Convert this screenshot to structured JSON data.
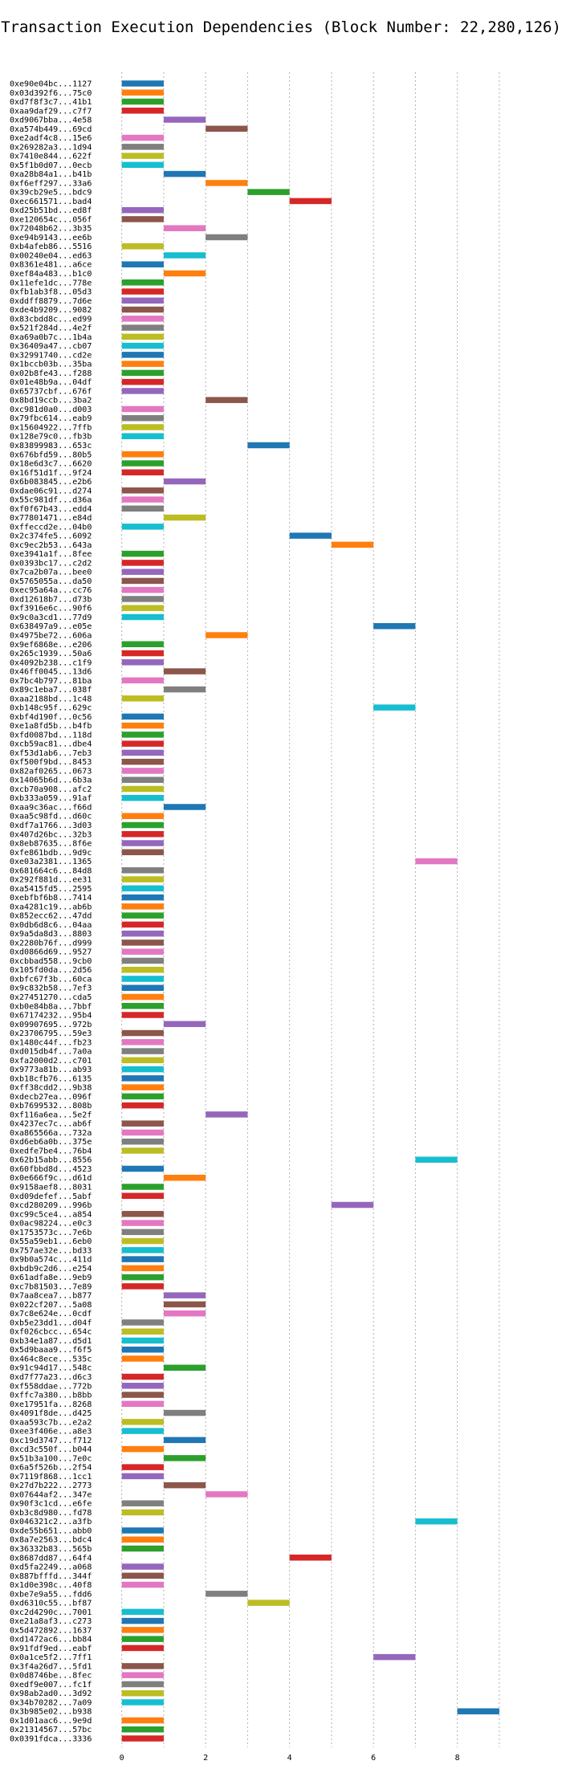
{
  "chart_data": {
    "type": "bar",
    "orientation": "horizontal",
    "title": "Transaction Execution Dependencies (Block Number: 22,280,126)",
    "xlabel": "",
    "ylabel": "",
    "xlim": [
      -0.3,
      9.5
    ],
    "xticks": [
      0,
      2,
      4,
      6,
      8
    ],
    "grid": "vertical dashed",
    "legend": "none",
    "palette": [
      "#1f77b4",
      "#ff7f0e",
      "#2ca02c",
      "#d62728",
      "#9467bd",
      "#8c564b",
      "#e377c2",
      "#7f7f7f",
      "#bcbd22",
      "#17becf"
    ],
    "rows": [
      {
        "label": "0xe90e04bc...1127",
        "start": 0
      },
      {
        "label": "0x03d392f6...75c0",
        "start": 0
      },
      {
        "label": "0xd7f8f3c7...41b1",
        "start": 0
      },
      {
        "label": "0xaa9daf29...c7f7",
        "start": 0
      },
      {
        "label": "0xd9067bba...4e58",
        "start": 1
      },
      {
        "label": "0xa574b449...69cd",
        "start": 2
      },
      {
        "label": "0xe2adf4c8...15e6",
        "start": 0
      },
      {
        "label": "0x269282a3...1d94",
        "start": 0
      },
      {
        "label": "0x7410e844...622f",
        "start": 0
      },
      {
        "label": "0x5f1b0d07...0ecb",
        "start": 0
      },
      {
        "label": "0xa28b84a1...b41b",
        "start": 1
      },
      {
        "label": "0xf6eff297...33a6",
        "start": 2
      },
      {
        "label": "0x39cb29e5...bdc9",
        "start": 3
      },
      {
        "label": "0xec661571...bad4",
        "start": 4
      },
      {
        "label": "0xd25b51bd...ed8f",
        "start": 0
      },
      {
        "label": "0xe120654c...056f",
        "start": 0
      },
      {
        "label": "0x72048b62...3b35",
        "start": 1
      },
      {
        "label": "0xe94b9143...ee6b",
        "start": 2
      },
      {
        "label": "0xb4afeb86...5516",
        "start": 0
      },
      {
        "label": "0x00240e04...ed63",
        "start": 1
      },
      {
        "label": "0x8361e481...a6ce",
        "start": 0
      },
      {
        "label": "0xef84a483...b1c0",
        "start": 1
      },
      {
        "label": "0x11efe1dc...778e",
        "start": 0
      },
      {
        "label": "0xfb1ab3f8...05d3",
        "start": 0
      },
      {
        "label": "0xddff8879...7d6e",
        "start": 0
      },
      {
        "label": "0xde4b9209...9082",
        "start": 0
      },
      {
        "label": "0x83cbdd8c...ed99",
        "start": 0
      },
      {
        "label": "0x521f284d...4e2f",
        "start": 0
      },
      {
        "label": "0xa69a0b7c...1b4a",
        "start": 0
      },
      {
        "label": "0x36409a47...cb07",
        "start": 0
      },
      {
        "label": "0x32991740...cd2e",
        "start": 0
      },
      {
        "label": "0x1bccb03b...35ba",
        "start": 0
      },
      {
        "label": "0x02b8fe43...f288",
        "start": 0
      },
      {
        "label": "0x01e48b9a...04df",
        "start": 0
      },
      {
        "label": "0x65737cbf...676f",
        "start": 0
      },
      {
        "label": "0x8bd19ccb...3ba2",
        "start": 2
      },
      {
        "label": "0xc981d0a0...d003",
        "start": 0
      },
      {
        "label": "0x79fbc614...eab9",
        "start": 0
      },
      {
        "label": "0x15604922...7ffb",
        "start": 0
      },
      {
        "label": "0x128e79c0...fb3b",
        "start": 0
      },
      {
        "label": "0x83899983...653c",
        "start": 3
      },
      {
        "label": "0x676bfd59...80b5",
        "start": 0
      },
      {
        "label": "0x18e6d3c7...6620",
        "start": 0
      },
      {
        "label": "0x16f51d1f...9f24",
        "start": 0
      },
      {
        "label": "0x6b083845...e2b6",
        "start": 1
      },
      {
        "label": "0xdae06c91...d274",
        "start": 0
      },
      {
        "label": "0x55c981df...d36a",
        "start": 0
      },
      {
        "label": "0xf0f67b43...edd4",
        "start": 0
      },
      {
        "label": "0x77801471...e84d",
        "start": 1
      },
      {
        "label": "0xffeccd2e...04b0",
        "start": 0
      },
      {
        "label": "0x2c374fe5...6092",
        "start": 4
      },
      {
        "label": "0xc9ec2b53...643a",
        "start": 5
      },
      {
        "label": "0xe3941a1f...8fee",
        "start": 0
      },
      {
        "label": "0x0393bc17...c2d2",
        "start": 0
      },
      {
        "label": "0x7ca2b07a...bee0",
        "start": 0
      },
      {
        "label": "0x5765055a...da50",
        "start": 0
      },
      {
        "label": "0xec95a64a...cc76",
        "start": 0
      },
      {
        "label": "0xd12618b7...d73b",
        "start": 0
      },
      {
        "label": "0xf3916e6c...90f6",
        "start": 0
      },
      {
        "label": "0x9c0a3cd1...77d9",
        "start": 0
      },
      {
        "label": "0x638497a9...e05e",
        "start": 6
      },
      {
        "label": "0x4975be72...606a",
        "start": 2
      },
      {
        "label": "0x9ef6868e...e206",
        "start": 0
      },
      {
        "label": "0x265c1939...50a6",
        "start": 0
      },
      {
        "label": "0x4092b238...c1f9",
        "start": 0
      },
      {
        "label": "0x46ff0045...13d6",
        "start": 1
      },
      {
        "label": "0x7bc4b797...81ba",
        "start": 0
      },
      {
        "label": "0x89c1eba7...038f",
        "start": 1
      },
      {
        "label": "0xaa2188bd...1c48",
        "start": 0
      },
      {
        "label": "0xb148c95f...629c",
        "start": 6
      },
      {
        "label": "0xbf4d190f...0c56",
        "start": 0
      },
      {
        "label": "0xe1a8fd5b...b4fb",
        "start": 0
      },
      {
        "label": "0xfd0087bd...118d",
        "start": 0
      },
      {
        "label": "0xcb59ac81...dbe4",
        "start": 0
      },
      {
        "label": "0xf53d1ab6...7eb3",
        "start": 0
      },
      {
        "label": "0xf500f9bd...8453",
        "start": 0
      },
      {
        "label": "0x82af0265...0673",
        "start": 0
      },
      {
        "label": "0x14065b6d...6b3a",
        "start": 0
      },
      {
        "label": "0xcb70a908...afc2",
        "start": 0
      },
      {
        "label": "0xb333a059...91af",
        "start": 0
      },
      {
        "label": "0xaa9c36ac...f66d",
        "start": 1
      },
      {
        "label": "0xaa5c98fd...d60c",
        "start": 0
      },
      {
        "label": "0xdf7a1766...3d03",
        "start": 0
      },
      {
        "label": "0x407d26bc...32b3",
        "start": 0
      },
      {
        "label": "0x8eb87635...8f6e",
        "start": 0
      },
      {
        "label": "0xfe861bdb...9d9c",
        "start": 0
      },
      {
        "label": "0xe03a2381...1365",
        "start": 7
      },
      {
        "label": "0x681664c6...84d8",
        "start": 0
      },
      {
        "label": "0x292f881d...ee31",
        "start": 0
      },
      {
        "label": "0xa5415fd5...2595",
        "start": 0
      },
      {
        "label": "0xebfbf6b8...7414",
        "start": 0
      },
      {
        "label": "0xa4281c19...ab6b",
        "start": 0
      },
      {
        "label": "0x852ecc62...47dd",
        "start": 0
      },
      {
        "label": "0x0db6d8c6...04aa",
        "start": 0
      },
      {
        "label": "0x9a5da8d3...8803",
        "start": 0
      },
      {
        "label": "0x2280b76f...d999",
        "start": 0
      },
      {
        "label": "0xd0866d69...9527",
        "start": 0
      },
      {
        "label": "0xcbbad558...9cb0",
        "start": 0
      },
      {
        "label": "0x105fd0da...2d56",
        "start": 0
      },
      {
        "label": "0xbfc67f3b...60ca",
        "start": 0
      },
      {
        "label": "0x9c832b58...7ef3",
        "start": 0
      },
      {
        "label": "0x27451270...cda5",
        "start": 0
      },
      {
        "label": "0xb0e84b8a...7bbf",
        "start": 0
      },
      {
        "label": "0x67174232...95b4",
        "start": 0
      },
      {
        "label": "0x09907695...972b",
        "start": 1
      },
      {
        "label": "0x23706795...59e3",
        "start": 0
      },
      {
        "label": "0x1480c44f...fb23",
        "start": 0
      },
      {
        "label": "0xd015db4f...7a0a",
        "start": 0
      },
      {
        "label": "0xfa2000d2...c701",
        "start": 0
      },
      {
        "label": "0x9773a81b...ab93",
        "start": 0
      },
      {
        "label": "0xb18cfb76...6135",
        "start": 0
      },
      {
        "label": "0xff38cdd2...9b38",
        "start": 0
      },
      {
        "label": "0xdecb27ea...096f",
        "start": 0
      },
      {
        "label": "0xb7699532...808b",
        "start": 0
      },
      {
        "label": "0xf116a6ea...5e2f",
        "start": 2
      },
      {
        "label": "0x4237ec7c...ab6f",
        "start": 0
      },
      {
        "label": "0xa865566a...732a",
        "start": 0
      },
      {
        "label": "0xd6eb6a0b...375e",
        "start": 0
      },
      {
        "label": "0xedfe7be4...76b4",
        "start": 0
      },
      {
        "label": "0x62b15abb...8556",
        "start": 7
      },
      {
        "label": "0x60fbbd8d...4523",
        "start": 0
      },
      {
        "label": "0x0e666f9c...d61d",
        "start": 1
      },
      {
        "label": "0x9158aef8...8031",
        "start": 0
      },
      {
        "label": "0xd09defef...5abf",
        "start": 0
      },
      {
        "label": "0xcd280209...996b",
        "start": 5
      },
      {
        "label": "0xc99c5ce4...a854",
        "start": 0
      },
      {
        "label": "0x0ac98224...e0c3",
        "start": 0
      },
      {
        "label": "0x1753573c...7e6b",
        "start": 0
      },
      {
        "label": "0x55a59eb1...6eb0",
        "start": 0
      },
      {
        "label": "0x757ae32e...bd33",
        "start": 0
      },
      {
        "label": "0x9b0a574c...411d",
        "start": 0
      },
      {
        "label": "0xbdb9c2d6...e254",
        "start": 0
      },
      {
        "label": "0x61adfa8e...9eb9",
        "start": 0
      },
      {
        "label": "0xc7b81503...7e89",
        "start": 0
      },
      {
        "label": "0x7aa8cea7...b877",
        "start": 1
      },
      {
        "label": "0x022cf207...5a08",
        "start": 1
      },
      {
        "label": "0x7c8e624e...0cdf",
        "start": 1
      },
      {
        "label": "0xb5e23dd1...d04f",
        "start": 0
      },
      {
        "label": "0xf026cbcc...654c",
        "start": 0
      },
      {
        "label": "0xb34e1a87...d5d1",
        "start": 0
      },
      {
        "label": "0x5d9baaa9...f6f5",
        "start": 0
      },
      {
        "label": "0x464c8ece...535c",
        "start": 0
      },
      {
        "label": "0x91c94d17...548c",
        "start": 1
      },
      {
        "label": "0xd7f77a23...d6c3",
        "start": 0
      },
      {
        "label": "0xf558ddae...772b",
        "start": 0
      },
      {
        "label": "0xffc7a380...b8bb",
        "start": 0
      },
      {
        "label": "0xe17951fa...8268",
        "start": 0
      },
      {
        "label": "0x4091f8de...d425",
        "start": 1
      },
      {
        "label": "0xaa593c7b...e2a2",
        "start": 0
      },
      {
        "label": "0xee3f406e...a8e3",
        "start": 0
      },
      {
        "label": "0xc19d3747...f712",
        "start": 1
      },
      {
        "label": "0xcd3c550f...b044",
        "start": 0
      },
      {
        "label": "0x51b3a100...7e0c",
        "start": 1
      },
      {
        "label": "0x6a5f526b...2f54",
        "start": 0
      },
      {
        "label": "0x7119f868...1cc1",
        "start": 0
      },
      {
        "label": "0x27d7b222...2773",
        "start": 1
      },
      {
        "label": "0x07644af2...347e",
        "start": 2
      },
      {
        "label": "0x90f3c1cd...e6fe",
        "start": 0
      },
      {
        "label": "0xb3c8d980...fd78",
        "start": 0
      },
      {
        "label": "0x046321c2...a3fb",
        "start": 7
      },
      {
        "label": "0xde55b651...abb0",
        "start": 0
      },
      {
        "label": "0x8a7e2563...bdc4",
        "start": 0
      },
      {
        "label": "0x36332b83...565b",
        "start": 0
      },
      {
        "label": "0x8687dd87...64f4",
        "start": 4
      },
      {
        "label": "0xd5fa2249...a068",
        "start": 0
      },
      {
        "label": "0x887bfffd...344f",
        "start": 0
      },
      {
        "label": "0x1d0e398c...40f8",
        "start": 0
      },
      {
        "label": "0xbe7e9a55...fdd6",
        "start": 2
      },
      {
        "label": "0xd6310c55...bf87",
        "start": 3
      },
      {
        "label": "0xc2d4290c...7001",
        "start": 0
      },
      {
        "label": "0xe21a8af3...c273",
        "start": 0
      },
      {
        "label": "0x5d472892...1637",
        "start": 0
      },
      {
        "label": "0xd1472ac6...bb84",
        "start": 0
      },
      {
        "label": "0x91fdf9ed...eabf",
        "start": 0
      },
      {
        "label": "0x0a1ce5f2...7ff1",
        "start": 6
      },
      {
        "label": "0x3f4a26d7...5fd1",
        "start": 0
      },
      {
        "label": "0x0d8746be...8fec",
        "start": 0
      },
      {
        "label": "0xedf9e007...fc1f",
        "start": 0
      },
      {
        "label": "0x98ab2ad0...3d92",
        "start": 0
      },
      {
        "label": "0x34b70282...7a09",
        "start": 0
      },
      {
        "label": "0x3b985e02...b938",
        "start": 8
      },
      {
        "label": "0x1d01aac6...9e9d",
        "start": 0
      },
      {
        "label": "0x21314567...57bc",
        "start": 0
      },
      {
        "label": "0x0391fdca...3336",
        "start": 0
      }
    ]
  }
}
